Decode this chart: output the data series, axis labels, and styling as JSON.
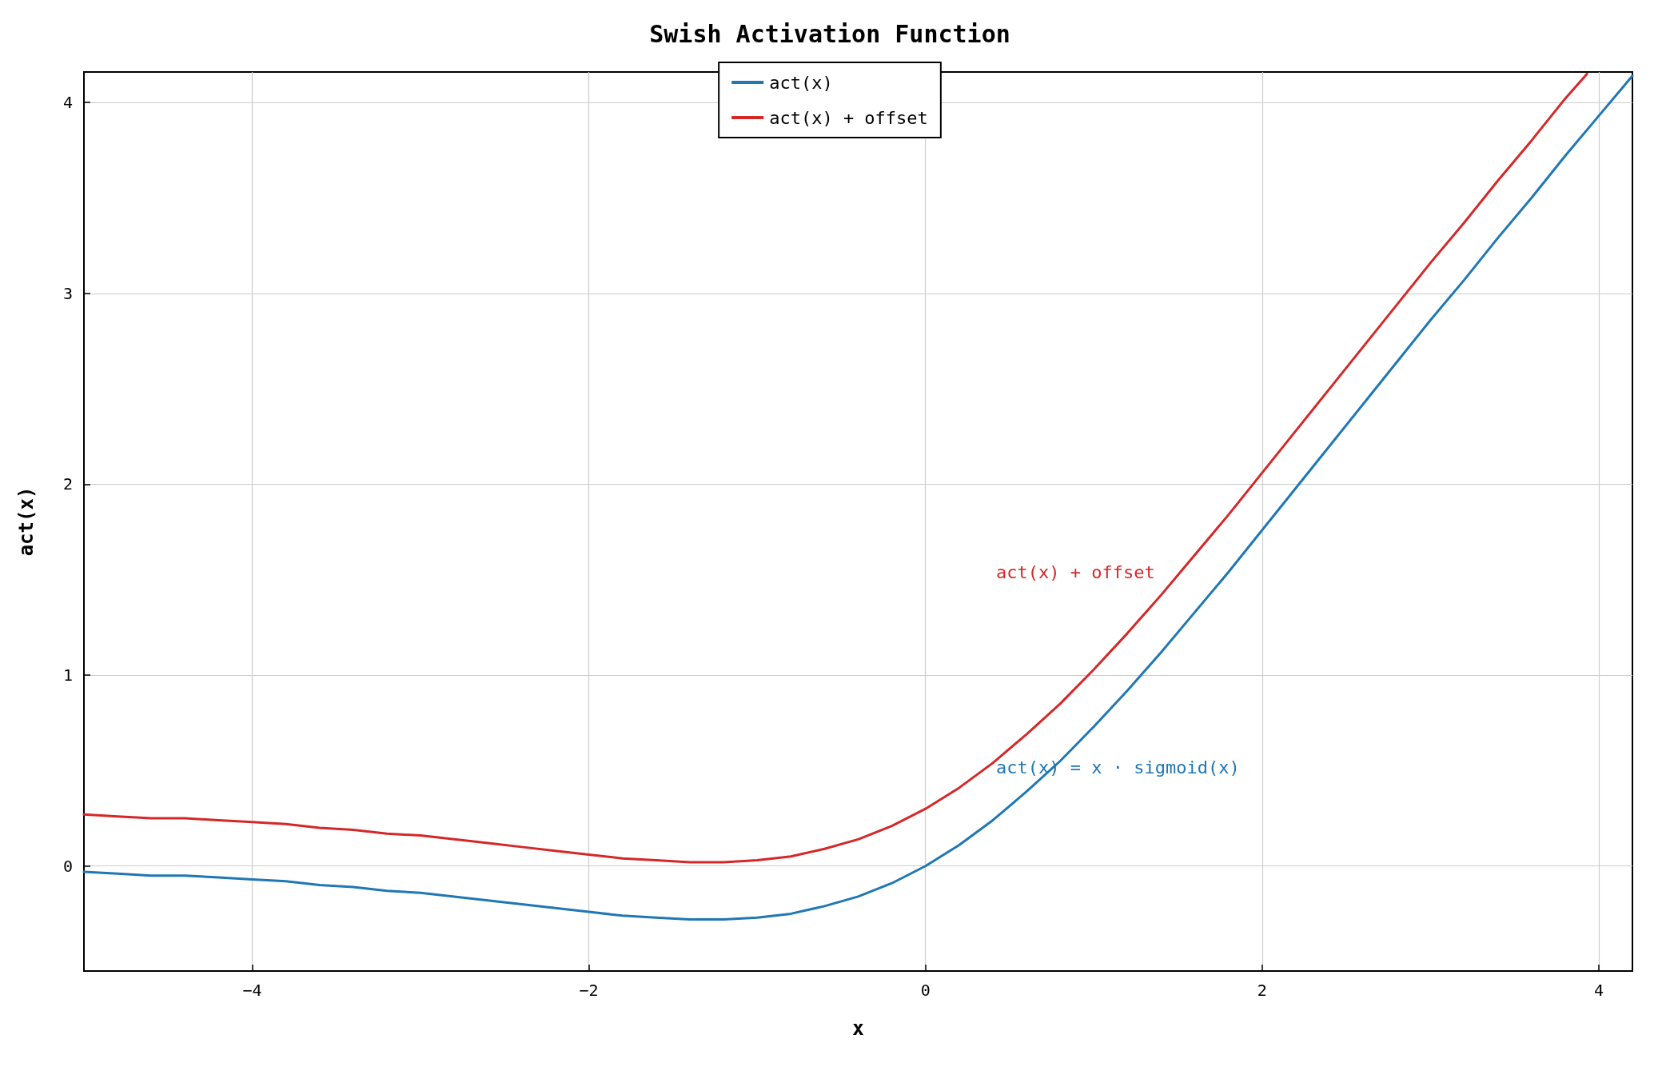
{
  "chart_data": {
    "type": "line",
    "title": "Swish Activation Function",
    "xlabel": "x",
    "ylabel": "act(x)",
    "xlim": [
      -5,
      4.2
    ],
    "ylim": [
      -0.55,
      4.16
    ],
    "xticks": [
      -4,
      -2,
      0,
      2,
      4
    ],
    "yticks": [
      0,
      1,
      2,
      3,
      4
    ],
    "grid": true,
    "legend": "top",
    "marker": "none",
    "line_style": "solid",
    "series": [
      {
        "name": "act(x)",
        "color": "#1f77b4",
        "x": [
          -5,
          -4.8,
          -4.6,
          -4.4,
          -4.2,
          -4,
          -3.8,
          -3.6,
          -3.4,
          -3.2,
          -3,
          -2.8,
          -2.6,
          -2.4,
          -2.2,
          -2,
          -1.8,
          -1.6,
          -1.4,
          -1.2,
          -1,
          -0.8,
          -0.6,
          -0.4,
          -0.2,
          0,
          0.2,
          0.4,
          0.6,
          0.8,
          1,
          1.2,
          1.4,
          1.6,
          1.8,
          2,
          2.2,
          2.4,
          2.6,
          2.8,
          3,
          3.2,
          3.4,
          3.6,
          3.8,
          4,
          4.2
        ],
        "values": [
          -0.03,
          -0.04,
          -0.05,
          -0.05,
          -0.06,
          -0.07,
          -0.08,
          -0.1,
          -0.11,
          -0.13,
          -0.14,
          -0.16,
          -0.18,
          -0.2,
          -0.22,
          -0.24,
          -0.26,
          -0.27,
          -0.28,
          -0.28,
          -0.27,
          -0.25,
          -0.21,
          -0.16,
          -0.09,
          0,
          0.11,
          0.24,
          0.39,
          0.55,
          0.73,
          0.92,
          1.12,
          1.33,
          1.54,
          1.76,
          1.98,
          2.2,
          2.42,
          2.64,
          2.86,
          3.07,
          3.29,
          3.5,
          3.72,
          3.93,
          4.14
        ]
      },
      {
        "name": "act(x) + offset",
        "color": "#d62728",
        "x": [
          -5,
          -4.8,
          -4.6,
          -4.4,
          -4.2,
          -4,
          -3.8,
          -3.6,
          -3.4,
          -3.2,
          -3,
          -2.8,
          -2.6,
          -2.4,
          -2.2,
          -2,
          -1.8,
          -1.6,
          -1.4,
          -1.2,
          -1,
          -0.8,
          -0.6,
          -0.4,
          -0.2,
          0,
          0.2,
          0.4,
          0.6,
          0.8,
          1,
          1.2,
          1.4,
          1.6,
          1.8,
          2,
          2.2,
          2.4,
          2.6,
          2.8,
          3,
          3.2,
          3.4,
          3.6,
          3.8,
          3.93
        ],
        "values": [
          0.27,
          0.26,
          0.25,
          0.25,
          0.24,
          0.23,
          0.22,
          0.2,
          0.19,
          0.17,
          0.16,
          0.14,
          0.12,
          0.1,
          0.08,
          0.06,
          0.04,
          0.03,
          0.02,
          0.02,
          0.03,
          0.05,
          0.09,
          0.14,
          0.21,
          0.3,
          0.41,
          0.54,
          0.69,
          0.85,
          1.03,
          1.22,
          1.42,
          1.63,
          1.84,
          2.06,
          2.28,
          2.5,
          2.72,
          2.94,
          3.16,
          3.37,
          3.59,
          3.8,
          4.02,
          4.15
        ]
      }
    ],
    "annotations": [
      "act(x) = x · sigmoid(x)",
      "act(x) + offset"
    ]
  }
}
